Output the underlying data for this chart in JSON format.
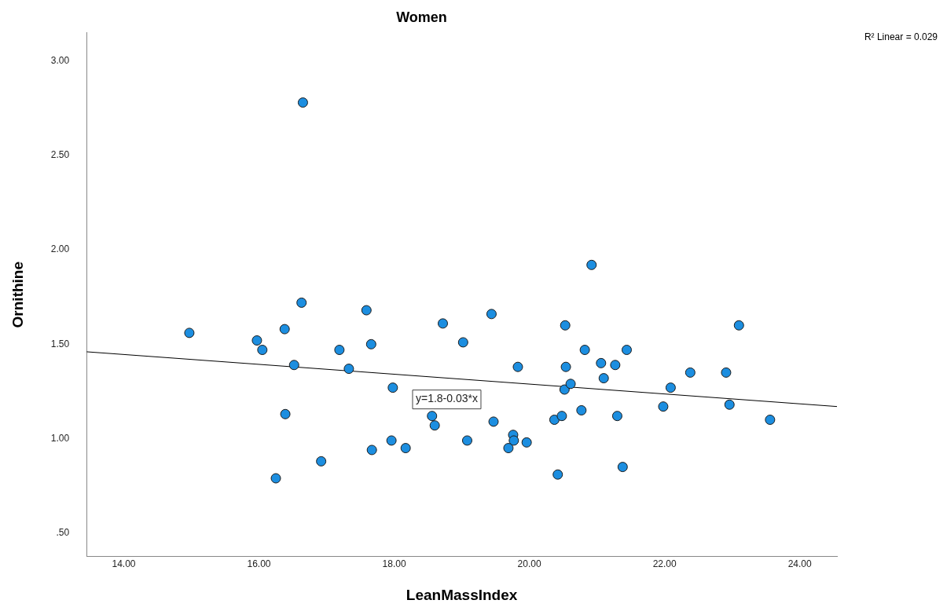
{
  "chart_data": {
    "type": "scatter",
    "title": "Women",
    "xlabel": "LeanMassIndex",
    "ylabel": "Ornithine",
    "xlim": [
      13.45,
      24.55
    ],
    "ylim": [
      0.375,
      3.15
    ],
    "xticks": [
      {
        "value": 14,
        "label": "14.00"
      },
      {
        "value": 16,
        "label": "16.00"
      },
      {
        "value": 18,
        "label": "18.00"
      },
      {
        "value": 20,
        "label": "20.00"
      },
      {
        "value": 22,
        "label": "22.00"
      },
      {
        "value": 24,
        "label": "24.00"
      }
    ],
    "yticks": [
      {
        "value": 0.5,
        "label": ".50"
      },
      {
        "value": 1,
        "label": "1.00"
      },
      {
        "value": 1.5,
        "label": "1.50"
      },
      {
        "value": 2,
        "label": "2.00"
      },
      {
        "value": 2.5,
        "label": "2.50"
      },
      {
        "value": 3,
        "label": "3.00"
      }
    ],
    "grid": false,
    "legend": false,
    "series": [
      {
        "type": "scatter",
        "marker": "circle",
        "color": "#1c8ee0",
        "x": [
          16.65,
          14.97,
          15.97,
          16.05,
          16.38,
          16.63,
          16.52,
          16.39,
          16.25,
          16.92,
          17.19,
          17.33,
          17.59,
          17.66,
          17.98,
          17.67,
          17.96,
          18.17,
          18.56,
          18.6,
          18.72,
          19.02,
          19.44,
          19.83,
          19.47,
          19.08,
          19.76,
          19.77,
          19.69,
          19.96,
          20.42,
          20.37,
          20.48,
          20.52,
          20.61,
          20.54,
          20.53,
          20.82,
          20.77,
          20.92,
          21.06,
          21.27,
          21.1,
          21.44,
          21.3,
          21.38,
          21.98,
          22.09,
          22.38,
          22.91,
          22.96,
          23.1,
          23.56
        ],
        "values": [
          2.78,
          1.56,
          1.52,
          1.47,
          1.58,
          1.72,
          1.39,
          1.13,
          0.79,
          0.88,
          1.47,
          1.37,
          1.68,
          1.5,
          1.27,
          0.94,
          0.99,
          0.95,
          1.12,
          1.07,
          1.61,
          1.51,
          1.66,
          1.38,
          1.09,
          0.99,
          1.02,
          0.99,
          0.95,
          0.98,
          0.81,
          1.1,
          1.12,
          1.26,
          1.29,
          1.38,
          1.6,
          1.47,
          1.15,
          1.92,
          1.4,
          1.39,
          1.32,
          1.47,
          1.12,
          0.85,
          1.17,
          1.27,
          1.35,
          1.35,
          1.18,
          1.6,
          1.1
        ]
      },
      {
        "type": "line",
        "marker": "none",
        "color": "#000000",
        "x": [
          13.45,
          24.55
        ],
        "values": [
          1.46,
          1.17
        ]
      }
    ],
    "annotations": [
      "y=1.8-0.03*x",
      "R² Linear = 0.029"
    ]
  }
}
